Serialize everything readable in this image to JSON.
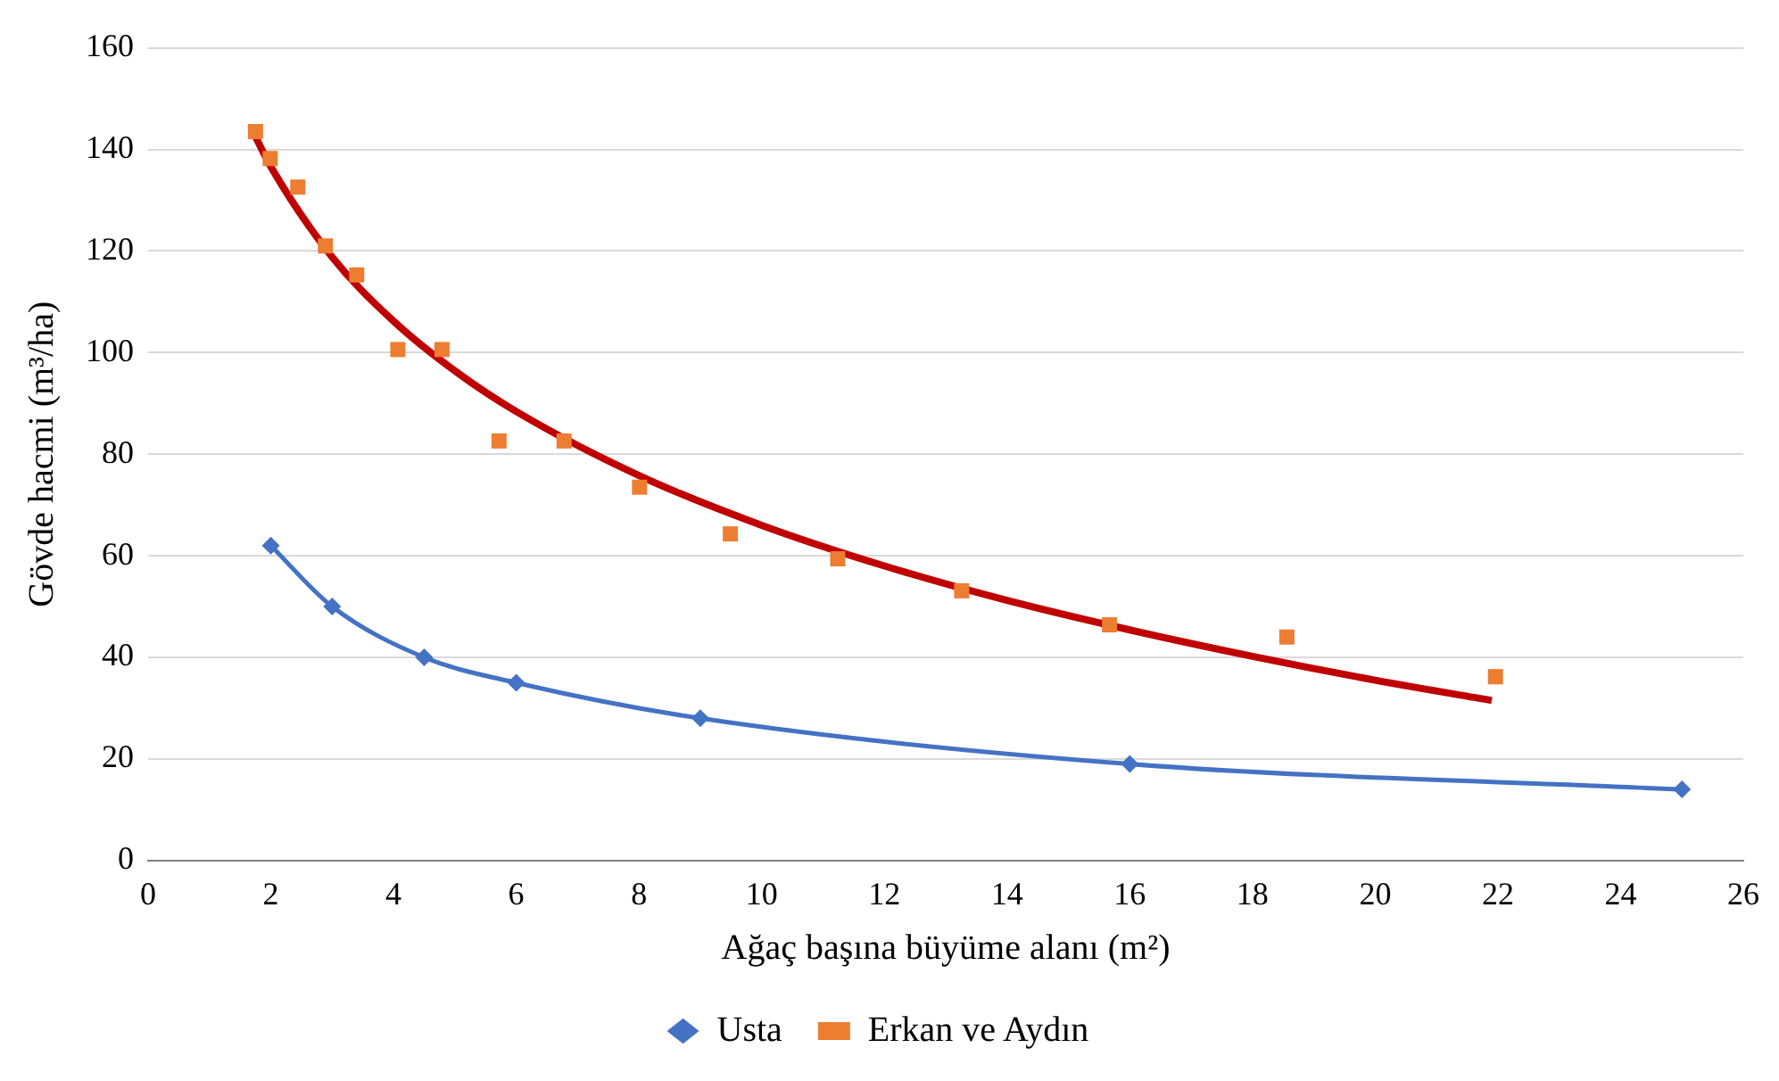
{
  "chart_data": {
    "type": "scatter",
    "xlabel": "Ağaç başına büyüme alanı (m²)",
    "ylabel": "Gövde hacmi (m³/ha)",
    "xlim": [
      0,
      26
    ],
    "xticks": [
      0,
      2,
      4,
      6,
      8,
      10,
      12,
      14,
      16,
      18,
      20,
      22,
      24,
      26
    ],
    "ylim": [
      0,
      160
    ],
    "yticks": [
      0,
      20,
      40,
      60,
      80,
      100,
      120,
      140,
      160
    ],
    "grid": "y",
    "legend": "bottom",
    "series": [
      {
        "name": "Usta",
        "type": "line",
        "color": "#4472c4",
        "marker": "diamond",
        "x": [
          2,
          3,
          4.5,
          6,
          9,
          16,
          25
        ],
        "values": [
          62,
          50,
          40,
          35,
          28,
          19,
          14
        ]
      },
      {
        "name": "Erkan ve Aydın",
        "color": "#ed7d31",
        "marker": "square",
        "x": [
          1.75,
          1.99,
          2.44,
          2.89,
          3.4,
          4.07,
          4.79,
          5.72,
          6.78,
          8.01,
          9.49,
          11.24,
          13.26,
          15.67,
          18.56,
          21.96
        ],
        "values": [
          143.5,
          138.2,
          132.6,
          121,
          115.3,
          100.6,
          100.6,
          82.6,
          82.6,
          73.5,
          64.3,
          59.4,
          53.1,
          46.4,
          44,
          36.2
        ]
      },
      {
        "type": "line",
        "color": "#c00000",
        "marker": "none",
        "x": [
          1.75,
          2,
          3,
          4,
          5,
          6,
          8,
          10,
          12,
          14,
          16,
          18,
          20,
          21.9
        ],
        "values": [
          142.5,
          136.6,
          118.8,
          106.2,
          96.4,
          88.4,
          75.8,
          66,
          58,
          51.2,
          45.4,
          40.2,
          35.5,
          31.5
        ]
      }
    ]
  }
}
